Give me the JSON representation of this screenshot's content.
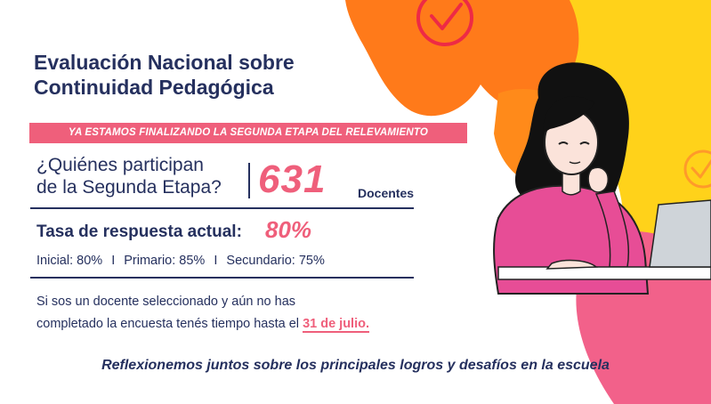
{
  "title": {
    "line1": "Evaluación Nacional sobre",
    "line2": "Continuidad Pedagógica"
  },
  "banner": "YA ESTAMOS FINALIZANDO LA SEGUNDA ETAPA DEL RELEVAMIENTO",
  "participants": {
    "question_line1": "¿Quiénes participan",
    "question_line2": "de la Segunda Etapa?",
    "count": "631",
    "unit": "Docentes"
  },
  "response_rate": {
    "label": "Tasa de respuesta actual:",
    "value": "80%",
    "levels": [
      {
        "text": "Inicial: 80%"
      },
      {
        "text": "Primario: 85%"
      },
      {
        "text": "Secundario: 75%"
      }
    ],
    "separator": "I"
  },
  "note": {
    "line1": "Si sos un  docente seleccionado y aún no has",
    "line2": "completado la encuesta tenés tiempo hasta el",
    "deadline": "31 de julio."
  },
  "footer": "Reflexionemos juntos sobre los principales logros y desafíos en la escuela",
  "colors": {
    "navy": "#25305e",
    "pink": "#ef5f7b",
    "orange": "#ff7a1a",
    "yellow": "#ffd21a"
  },
  "icons": [
    "checkmark-circle-icon",
    "checkmark-circle-icon"
  ]
}
